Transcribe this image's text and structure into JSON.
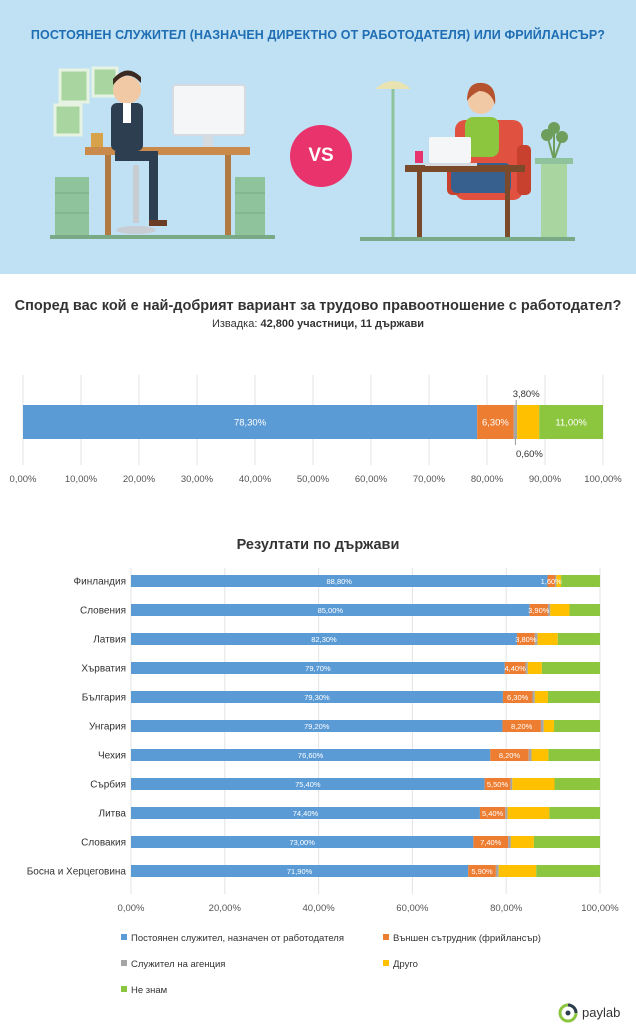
{
  "header": {
    "title": "ПОСТОЯНЕН СЛУЖИТЕЛ (НАЗНАЧЕН ДИРЕКТНО ОТ РАБОТОДАТЕЛЯ) ИЛИ ФРИЙЛАНСЪР?",
    "vs_label": "VS"
  },
  "survey": {
    "question": "Според вас кой е най-добрият вариант за трудово правоотношение с работодател?",
    "sample_label": "Извадка:",
    "sample_value": "42,800 участници, 11 държави"
  },
  "colors": {
    "employee": "#5b9bd5",
    "freelancer": "#ed7d31",
    "agency": "#a5a5a5",
    "other": "#ffc000",
    "dont_know": "#8cc63f",
    "hero_bg": "#bfe1f3",
    "title_blue": "#1f6db3",
    "vs_pink": "#e8336d"
  },
  "chart_data": [
    {
      "type": "bar",
      "orientation": "horizontal",
      "stacked": true,
      "categories": [
        ""
      ],
      "series": [
        {
          "name": "Постоянен служител, назначен от работодателя",
          "values": [
            78.3
          ],
          "label": "78,30%"
        },
        {
          "name": "Външен сътрудник (фрийлансър)",
          "values": [
            6.3
          ],
          "label": "6,30%"
        },
        {
          "name": "Служител на агенция",
          "values": [
            0.6
          ],
          "label": "0,60%"
        },
        {
          "name": "Друго",
          "values": [
            3.8
          ],
          "label": "3,80%"
        },
        {
          "name": "Не знам",
          "values": [
            11.0
          ],
          "label": "11,00%"
        }
      ],
      "xlim": [
        0,
        100
      ],
      "xticks": [
        "0,00%",
        "10,00%",
        "20,00%",
        "30,00%",
        "40,00%",
        "50,00%",
        "60,00%",
        "70,00%",
        "80,00%",
        "90,00%",
        "100,00%"
      ],
      "grid": "vertical"
    },
    {
      "type": "bar",
      "orientation": "horizontal",
      "stacked": true,
      "title": "Резултати по държави",
      "categories": [
        "Финландия",
        "Словения",
        "Латвия",
        "Хърватия",
        "България",
        "Унгария",
        "Чехия",
        "Сърбия",
        "Литва",
        "Словакия",
        "Босна и Херцеговина"
      ],
      "series": [
        {
          "name": "Постоянен служител, назначен от работодателя",
          "values": [
            88.8,
            85.0,
            82.3,
            79.7,
            79.3,
            79.2,
            76.6,
            75.4,
            74.4,
            73.0,
            71.9
          ],
          "labels": [
            "88,80%",
            "85,00%",
            "82,30%",
            "79,70%",
            "79,30%",
            "79,20%",
            "76,60%",
            "75,40%",
            "74,40%",
            "73,00%",
            "71,90%"
          ]
        },
        {
          "name": "Външен сътрудник (фрийлансър)",
          "values": [
            1.6,
            3.9,
            3.8,
            4.4,
            6.3,
            8.2,
            8.2,
            5.5,
            5.4,
            7.4,
            5.9
          ],
          "labels": [
            "1,60%",
            "3,90%",
            "3,80%",
            "4,40%",
            "6,30%",
            "8,20%",
            "8,20%",
            "5,50%",
            "5,40%",
            "7,40%",
            "5,90%"
          ]
        },
        {
          "name": "Служител на агенция",
          "values": [
            0.3,
            0.5,
            0.6,
            0.5,
            0.5,
            0.6,
            0.6,
            0.4,
            0.5,
            0.6,
            0.6
          ]
        },
        {
          "name": "Друго",
          "values": [
            1.0,
            4.1,
            4.3,
            3.0,
            2.8,
            2.2,
            3.6,
            9.0,
            8.9,
            4.9,
            8.0
          ]
        },
        {
          "name": "Не знам",
          "values": [
            8.3,
            6.5,
            9.0,
            12.4,
            11.1,
            9.8,
            11.0,
            9.7,
            10.8,
            14.1,
            13.6
          ]
        }
      ],
      "xlim": [
        0,
        100
      ],
      "xticks": [
        "0,00%",
        "20,00%",
        "40,00%",
        "60,00%",
        "80,00%",
        "100,00%"
      ],
      "grid": "vertical",
      "legend": {
        "placement": "bottom",
        "items": [
          "Постоянен служител, назначен от работодателя",
          "Външен сътрудник (фрийлансър)",
          "Служител на агенция",
          "Друго",
          "Не знам"
        ]
      }
    }
  ],
  "footer": {
    "brand": "paylab"
  }
}
